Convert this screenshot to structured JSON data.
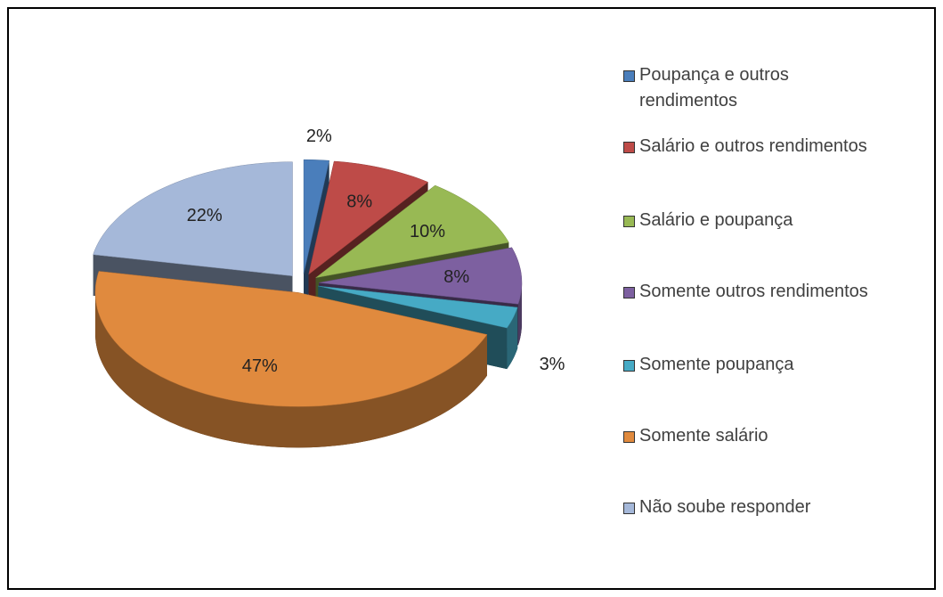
{
  "chart_data": {
    "type": "pie",
    "categories": [
      "Poupança e outros rendimentos",
      "Salário e outros rendimentos",
      "Salário e poupança",
      "Somente outros rendimentos",
      "Somente poupança",
      "Somente salário",
      "Não soube responder"
    ],
    "values": [
      2,
      8,
      10,
      8,
      3,
      47,
      22
    ],
    "value_labels": [
      "2%",
      "8%",
      "10%",
      "8%",
      "3%",
      "47%",
      "22%"
    ],
    "colors": [
      "#4a7ebb",
      "#be4b48",
      "#98b954",
      "#7d60a0",
      "#46aac5",
      "#e08a3e",
      "#a5b8d9"
    ]
  }
}
